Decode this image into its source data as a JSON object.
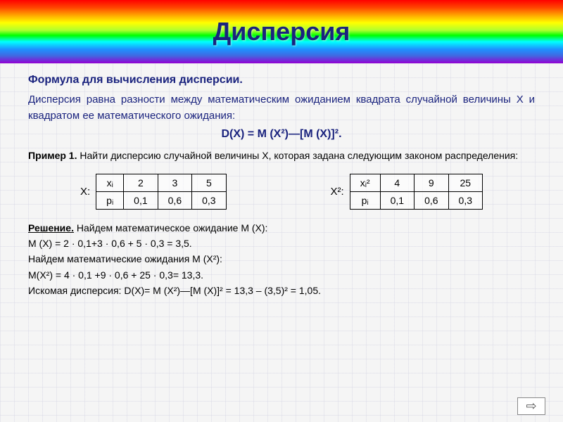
{
  "title": "Дисперсия",
  "subtitle": "Формула для вычисления дисперсии.",
  "body_text": "Дисперсия равна разности между математическим ожиданием квадрата случайной величины X и квадратом ее математического ожидания:",
  "formula": "D(X) = M (X²)—[M (X)]².",
  "example": {
    "label": "Пример 1.",
    "text": "Найти дисперсию случайной величины X, которая задана следующим законом распределения:"
  },
  "table1": {
    "label": "X:",
    "row1_header": "xᵢ",
    "row1": [
      "2",
      "3",
      "5"
    ],
    "row2_header": "pᵢ",
    "row2": [
      "0,1",
      "0,6",
      "0,3"
    ]
  },
  "table2": {
    "label": "X²:",
    "row1_header": "xᵢ²",
    "row1": [
      "4",
      "9",
      "25"
    ],
    "row2_header": "pᵢ",
    "row2": [
      "0,1",
      "0,6",
      "0,3"
    ]
  },
  "solution": {
    "label": "Решение.",
    "line1": "Найдем математическое ожидание M (X):",
    "line2": "M (X) = 2 · 0,1+3 · 0,6 + 5 · 0,3 = 3,5.",
    "line3": "Найдем математические ожидания M (X²):",
    "line4": "M(X²) = 4 · 0,1 +9 · 0,6 + 25 · 0,3= 13,3.",
    "line5": "Искомая дисперсия: D(X)= M (X²)—[M (X)]² = 13,3 – (3,5)² = 1,05."
  },
  "arrow": "⇨",
  "colors": {
    "title_color": "#1a237e",
    "text_color": "#000000"
  }
}
